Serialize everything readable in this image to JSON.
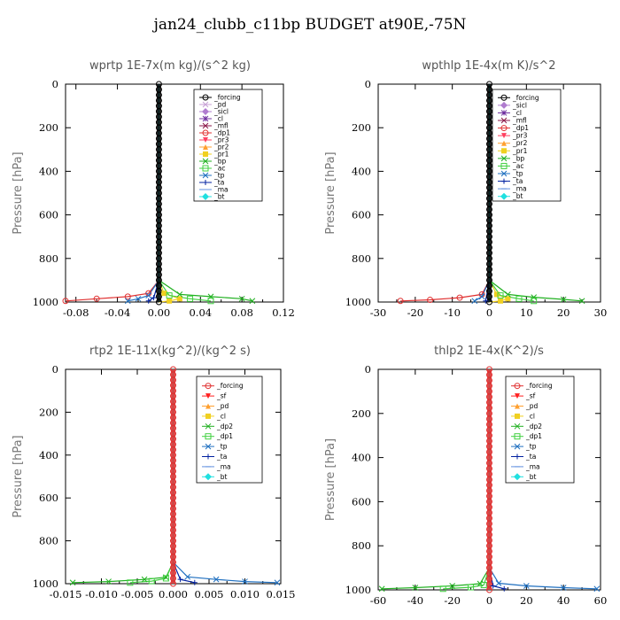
{
  "title": "jan24_clubb_c11bp  BUDGET at90E,-75N",
  "chart_data": [
    {
      "type": "line",
      "title": "wprtp   1E-7x(m kg)/(s^2 kg)",
      "ylabel": "Pressure [hPa]",
      "xlim": [
        -0.09,
        0.12
      ],
      "ylim": [
        1000,
        0
      ],
      "x_ticks": [
        -0.08,
        -0.04,
        0.0,
        0.04,
        0.08,
        0.12
      ],
      "x_tick_labels": [
        "-0.08",
        "-0.04",
        "0.00",
        "0.04",
        "0.08",
        "0.12"
      ],
      "y_ticks": [
        0,
        200,
        400,
        600,
        800,
        1000
      ],
      "series": [
        {
          "name": "_forcing",
          "color": "#000000",
          "marker": "circle-open",
          "x": [
            0,
            0,
            0,
            0,
            0
          ],
          "y": [
            0,
            500,
            900,
            960,
            1000
          ]
        },
        {
          "name": "_pd",
          "color": "#c8a2d6",
          "marker": "x",
          "x": [
            0,
            0,
            0
          ],
          "y": [
            0,
            500,
            1000
          ]
        },
        {
          "name": "_sicl",
          "color": "#b07ccf",
          "marker": "diamond",
          "x": [
            0,
            0,
            0
          ],
          "y": [
            0,
            500,
            1000
          ]
        },
        {
          "name": "_cl",
          "color": "#7030a0",
          "marker": "star",
          "x": [
            0,
            0,
            0
          ],
          "y": [
            0,
            500,
            1000
          ]
        },
        {
          "name": "_mfl",
          "color": "#8b1a4a",
          "marker": "x",
          "x": [
            0,
            0,
            0
          ],
          "y": [
            0,
            500,
            1000
          ]
        },
        {
          "name": "_dp1",
          "color": "#e03030",
          "marker": "circle-open",
          "x": [
            0,
            0,
            -0.01,
            -0.03,
            -0.06,
            -0.09
          ],
          "y": [
            0,
            900,
            960,
            975,
            985,
            995
          ]
        },
        {
          "name": "_pr3",
          "color": "#ff4060",
          "marker": "triangle-down",
          "x": [
            0,
            0,
            0
          ],
          "y": [
            0,
            500,
            1000
          ]
        },
        {
          "name": "_pr2",
          "color": "#ffa030",
          "marker": "triangle",
          "x": [
            0,
            0,
            0
          ],
          "y": [
            0,
            500,
            1000
          ]
        },
        {
          "name": "_pr1",
          "color": "#f0d020",
          "marker": "square",
          "x": [
            0,
            0,
            0.005,
            0.02,
            0.01,
            0
          ],
          "y": [
            0,
            900,
            960,
            985,
            995,
            1000
          ]
        },
        {
          "name": "_bp",
          "color": "#20b020",
          "marker": "x",
          "x": [
            0,
            0,
            0.02,
            0.05,
            0.08,
            0.09
          ],
          "y": [
            0,
            900,
            965,
            975,
            985,
            995
          ]
        },
        {
          "name": "_ac",
          "color": "#40d040",
          "marker": "square-open",
          "x": [
            0,
            0,
            0.01,
            0.03,
            0.05
          ],
          "y": [
            0,
            900,
            970,
            985,
            995
          ]
        },
        {
          "name": "_tp",
          "color": "#2070c0",
          "marker": "x",
          "x": [
            0,
            0,
            -0.01,
            -0.02,
            -0.03
          ],
          "y": [
            0,
            900,
            970,
            985,
            995
          ]
        },
        {
          "name": "_ta",
          "color": "#0020a0",
          "marker": "plus",
          "x": [
            0,
            0,
            -0.005,
            -0.01
          ],
          "y": [
            0,
            900,
            980,
            995
          ]
        },
        {
          "name": "_ma",
          "color": "#6090e0",
          "marker": "dash",
          "x": [
            0,
            0,
            0
          ],
          "y": [
            0,
            500,
            1000
          ]
        },
        {
          "name": "_bt",
          "color": "#20e0e0",
          "marker": "diamond",
          "x": [
            0,
            0,
            0
          ],
          "y": [
            0,
            500,
            1000
          ]
        }
      ]
    },
    {
      "type": "line",
      "title": "wpthlp   1E-4x(m K)/s^2",
      "ylabel": "Pressure [hPa]",
      "xlim": [
        -30,
        30
      ],
      "ylim": [
        1000,
        0
      ],
      "x_ticks": [
        -30,
        -20,
        -10,
        0,
        10,
        20,
        30
      ],
      "x_tick_labels": [
        "-30",
        "-20",
        "-10",
        "0",
        "10",
        "20",
        "30"
      ],
      "y_ticks": [
        0,
        200,
        400,
        600,
        800,
        1000
      ],
      "series": [
        {
          "name": "_forcing",
          "color": "#000000",
          "marker": "circle-open",
          "x": [
            0,
            0,
            0
          ],
          "y": [
            0,
            500,
            1000
          ]
        },
        {
          "name": "_sicl",
          "color": "#b07ccf",
          "marker": "diamond",
          "x": [
            0,
            0,
            0
          ],
          "y": [
            0,
            500,
            1000
          ]
        },
        {
          "name": "_cl",
          "color": "#7030a0",
          "marker": "star",
          "x": [
            0,
            0,
            0
          ],
          "y": [
            0,
            500,
            1000
          ]
        },
        {
          "name": "_mfl",
          "color": "#8b1a4a",
          "marker": "x",
          "x": [
            0,
            0,
            0
          ],
          "y": [
            0,
            500,
            1000
          ]
        },
        {
          "name": "_dp1",
          "color": "#e03030",
          "marker": "circle-open",
          "x": [
            0,
            0,
            -2,
            -8,
            -16,
            -24
          ],
          "y": [
            0,
            900,
            965,
            980,
            990,
            995
          ]
        },
        {
          "name": "_pr3",
          "color": "#ff4060",
          "marker": "triangle-down",
          "x": [
            0,
            0,
            0
          ],
          "y": [
            0,
            500,
            1000
          ]
        },
        {
          "name": "_pr2",
          "color": "#ffa030",
          "marker": "triangle",
          "x": [
            0,
            0,
            0
          ],
          "y": [
            0,
            500,
            1000
          ]
        },
        {
          "name": "_pr1",
          "color": "#f0d020",
          "marker": "square",
          "x": [
            0,
            0,
            2,
            5,
            3,
            0
          ],
          "y": [
            0,
            900,
            965,
            985,
            995,
            1000
          ]
        },
        {
          "name": "_bp",
          "color": "#20b020",
          "marker": "x",
          "x": [
            0,
            0,
            5,
            12,
            20,
            25
          ],
          "y": [
            0,
            900,
            965,
            978,
            988,
            995
          ]
        },
        {
          "name": "_ac",
          "color": "#40d040",
          "marker": "square-open",
          "x": [
            0,
            0,
            3,
            8,
            12
          ],
          "y": [
            0,
            900,
            970,
            985,
            995
          ]
        },
        {
          "name": "_tp",
          "color": "#2070c0",
          "marker": "x",
          "x": [
            0,
            0,
            -2,
            -4
          ],
          "y": [
            0,
            900,
            975,
            995
          ]
        },
        {
          "name": "_ta",
          "color": "#0020a0",
          "marker": "plus",
          "x": [
            0,
            0,
            -1
          ],
          "y": [
            0,
            900,
            995
          ]
        },
        {
          "name": "_ma",
          "color": "#6090e0",
          "marker": "dash",
          "x": [
            0,
            0,
            0
          ],
          "y": [
            0,
            500,
            1000
          ]
        },
        {
          "name": "_bt",
          "color": "#20e0e0",
          "marker": "diamond",
          "x": [
            0,
            0,
            0
          ],
          "y": [
            0,
            500,
            1000
          ]
        }
      ]
    },
    {
      "type": "line",
      "title": "rtp2   1E-11x(kg^2)/(kg^2 s)",
      "ylabel": "Pressure [hPa]",
      "xlim": [
        -0.015,
        0.015
      ],
      "ylim": [
        1000,
        0
      ],
      "x_ticks": [
        -0.015,
        -0.01,
        -0.005,
        0.0,
        0.005,
        0.01,
        0.015
      ],
      "x_tick_labels": [
        "-0.015",
        "-0.010",
        "-0.005",
        "0.000",
        "0.005",
        "0.010",
        "0.015"
      ],
      "y_ticks": [
        0,
        200,
        400,
        600,
        800,
        1000
      ],
      "series": [
        {
          "name": "_forcing",
          "color": "#e03030",
          "marker": "circle-open",
          "x": [
            0,
            0,
            0
          ],
          "y": [
            0,
            500,
            1000
          ]
        },
        {
          "name": "_sf",
          "color": "#ff2020",
          "marker": "triangle-down",
          "x": [
            0,
            0,
            0
          ],
          "y": [
            0,
            500,
            1000
          ]
        },
        {
          "name": "_pd",
          "color": "#ffa030",
          "marker": "triangle",
          "x": [
            0,
            0,
            0
          ],
          "y": [
            0,
            500,
            1000
          ]
        },
        {
          "name": "_cl",
          "color": "#f0d020",
          "marker": "square",
          "x": [
            0,
            0,
            0
          ],
          "y": [
            0,
            500,
            1000
          ]
        },
        {
          "name": "_dp2",
          "color": "#20b020",
          "marker": "x",
          "x": [
            0,
            0,
            -0.001,
            -0.004,
            -0.009,
            -0.014
          ],
          "y": [
            0,
            900,
            970,
            980,
            990,
            995
          ]
        },
        {
          "name": "_dp1",
          "color": "#40d040",
          "marker": "square-open",
          "x": [
            0,
            0,
            -0.001,
            -0.003,
            -0.006
          ],
          "y": [
            0,
            900,
            975,
            988,
            995
          ]
        },
        {
          "name": "_tp",
          "color": "#2070c0",
          "marker": "x",
          "x": [
            0,
            0,
            0.002,
            0.006,
            0.01,
            0.0145
          ],
          "y": [
            0,
            900,
            968,
            980,
            990,
            995
          ]
        },
        {
          "name": "_ta",
          "color": "#0020a0",
          "marker": "plus",
          "x": [
            0,
            0,
            0.001,
            0.003
          ],
          "y": [
            0,
            900,
            980,
            995
          ]
        },
        {
          "name": "_ma",
          "color": "#6090e0",
          "marker": "dash",
          "x": [
            0,
            0,
            0
          ],
          "y": [
            0,
            500,
            1000
          ]
        },
        {
          "name": "_bt",
          "color": "#20e0e0",
          "marker": "diamond",
          "x": [
            0,
            0,
            0
          ],
          "y": [
            0,
            500,
            1000
          ]
        }
      ]
    },
    {
      "type": "line",
      "title": "thlp2   1E-4x(K^2)/s",
      "ylabel": "Pressure [hPa]",
      "xlim": [
        -60,
        60
      ],
      "ylim": [
        1000,
        0
      ],
      "x_ticks": [
        -60,
        -40,
        -20,
        0,
        20,
        40,
        60
      ],
      "x_tick_labels": [
        "-60",
        "-40",
        "-20",
        "0",
        "20",
        "40",
        "60"
      ],
      "y_ticks": [
        0,
        200,
        400,
        600,
        800,
        1000
      ],
      "series": [
        {
          "name": "_forcing",
          "color": "#e03030",
          "marker": "circle-open",
          "x": [
            0,
            0,
            0
          ],
          "y": [
            0,
            500,
            1000
          ]
        },
        {
          "name": "_sf",
          "color": "#ff2020",
          "marker": "triangle-down",
          "x": [
            0,
            0,
            0
          ],
          "y": [
            0,
            500,
            1000
          ]
        },
        {
          "name": "_pd",
          "color": "#ffa030",
          "marker": "triangle",
          "x": [
            0,
            0,
            0
          ],
          "y": [
            0,
            500,
            1000
          ]
        },
        {
          "name": "_cl",
          "color": "#f0d020",
          "marker": "square",
          "x": [
            0,
            0,
            0
          ],
          "y": [
            0,
            500,
            1000
          ]
        },
        {
          "name": "_dp2",
          "color": "#20b020",
          "marker": "x",
          "x": [
            0,
            0,
            -5,
            -20,
            -40,
            -58
          ],
          "y": [
            0,
            900,
            972,
            982,
            990,
            995
          ]
        },
        {
          "name": "_dp1",
          "color": "#40d040",
          "marker": "square-open",
          "x": [
            0,
            0,
            -3,
            -10,
            -25
          ],
          "y": [
            0,
            900,
            978,
            988,
            995
          ]
        },
        {
          "name": "_tp",
          "color": "#2070c0",
          "marker": "x",
          "x": [
            0,
            0,
            5,
            20,
            40,
            58
          ],
          "y": [
            0,
            900,
            970,
            982,
            990,
            995
          ]
        },
        {
          "name": "_ta",
          "color": "#0020a0",
          "marker": "plus",
          "x": [
            0,
            0,
            2,
            8
          ],
          "y": [
            0,
            900,
            982,
            995
          ]
        },
        {
          "name": "_ma",
          "color": "#6090e0",
          "marker": "dash",
          "x": [
            0,
            0,
            0
          ],
          "y": [
            0,
            500,
            1000
          ]
        },
        {
          "name": "_bt",
          "color": "#20e0e0",
          "marker": "diamond",
          "x": [
            0,
            0,
            0
          ],
          "y": [
            0,
            500,
            1000
          ]
        }
      ]
    }
  ]
}
